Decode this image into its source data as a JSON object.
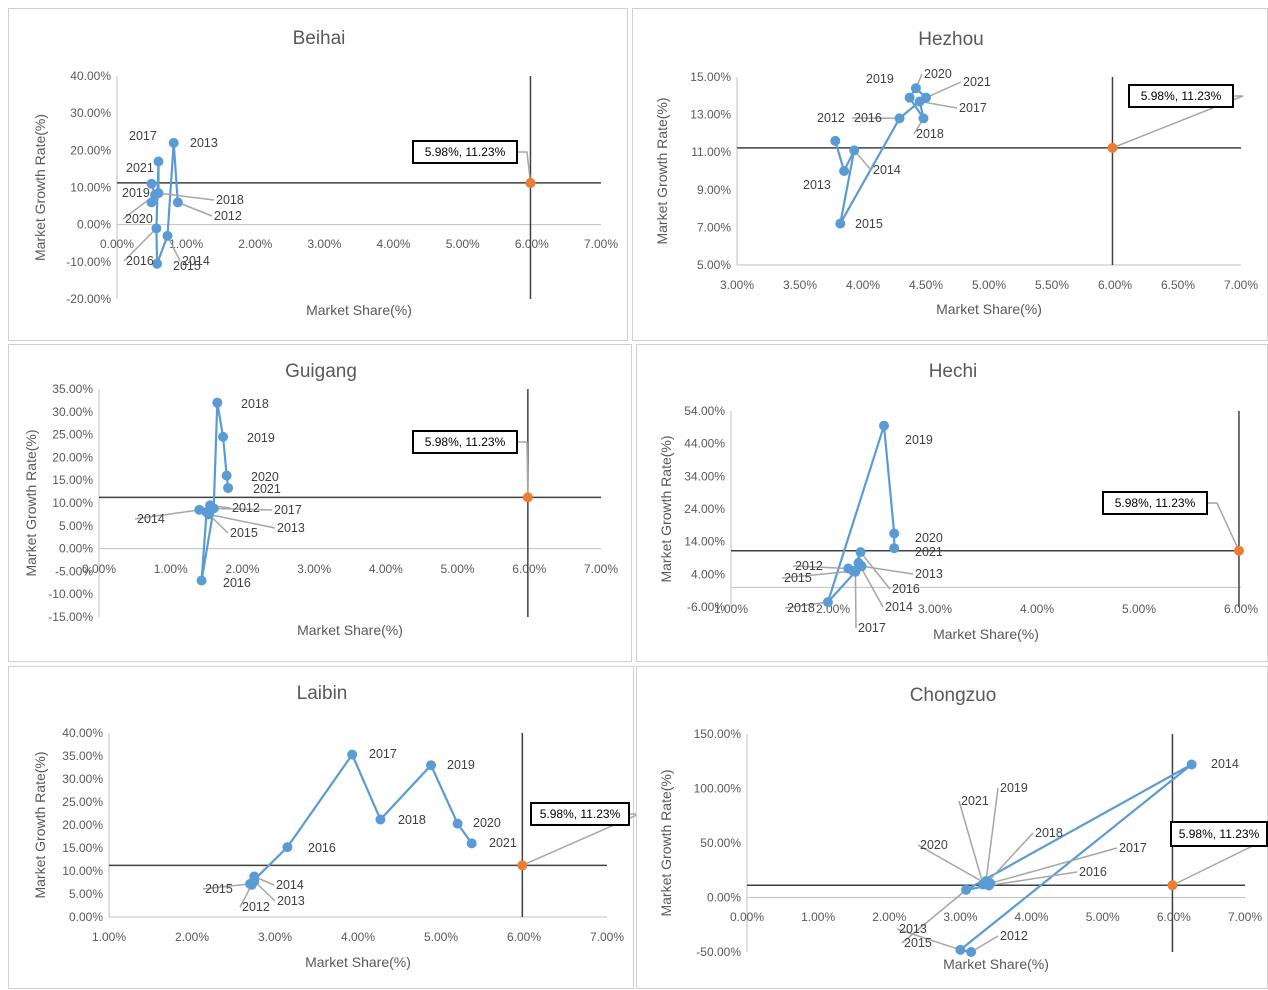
{
  "colors": {
    "series": "#5b9bd5",
    "reference": "#ed7d31",
    "crosshair": "#404040",
    "leader": "#a6a6a6",
    "axis": "#bfbfbf"
  },
  "chart_data": [
    {
      "type": "scatter",
      "title": "Beihai",
      "xlabel": "Market Share(%)",
      "ylabel": "Market Growth Rate(%)",
      "xlim": [
        0,
        7
      ],
      "ylim": [
        -20,
        40
      ],
      "xstep": 1,
      "ystep": 10,
      "xdec": 2,
      "ydec": 2,
      "xticks": [
        "0.00%",
        "1.00%",
        "2.00%",
        "3.00%",
        "4.00%",
        "5.00%",
        "6.00%",
        "7.00%"
      ],
      "yticks": [
        "-20.00%",
        "-10.00%",
        "0.00%",
        "10.00%",
        "20.00%",
        "30.00%",
        "40.00%"
      ],
      "reference": {
        "x": 5.98,
        "y": 11.23,
        "label": "5.98%, 11.23%"
      },
      "series": [
        {
          "points": [
            {
              "year": "2012",
              "x": 0.88,
              "y": 6
            },
            {
              "year": "2013",
              "x": 0.82,
              "y": 22
            },
            {
              "year": "2014",
              "x": 0.73,
              "y": -3
            },
            {
              "year": "2015",
              "x": 0.58,
              "y": -10.5
            },
            {
              "year": "2016",
              "x": 0.57,
              "y": -1
            },
            {
              "year": "2017",
              "x": 0.6,
              "y": 17
            },
            {
              "year": "2018",
              "x": 0.6,
              "y": 8.5
            },
            {
              "year": "2019",
              "x": 0.5,
              "y": 6
            },
            {
              "year": "2020",
              "x": 0.55,
              "y": 8
            },
            {
              "year": "2021",
              "x": 0.5,
              "y": 11
            }
          ]
        }
      ]
    },
    {
      "type": "scatter",
      "title": "Hezhou",
      "xlabel": "Market Share(%)",
      "ylabel": "Market Growth Rate(%)",
      "xlim": [
        3,
        7
      ],
      "ylim": [
        5,
        15
      ],
      "xstep": 0.5,
      "ystep": 2,
      "xdec": 2,
      "ydec": 2,
      "xticks": [
        "3.00%",
        "3.50%",
        "4.00%",
        "4.50%",
        "5.00%",
        "5.50%",
        "6.00%",
        "6.50%",
        "7.00%"
      ],
      "yticks": [
        "5.00%",
        "7.00%",
        "9.00%",
        "11.00%",
        "13.00%",
        "15.00%"
      ],
      "reference": {
        "x": 5.98,
        "y": 11.23,
        "label": "5.98%, 11.23%"
      },
      "series": [
        {
          "points": [
            {
              "year": "2012",
              "x": 3.78,
              "y": 11.6
            },
            {
              "year": "2013",
              "x": 3.85,
              "y": 10.0
            },
            {
              "year": "2014",
              "x": 3.93,
              "y": 11.1
            },
            {
              "year": "2015",
              "x": 3.82,
              "y": 7.2
            },
            {
              "year": "2016",
              "x": 4.29,
              "y": 12.8
            },
            {
              "year": "2017",
              "x": 4.45,
              "y": 13.7
            },
            {
              "year": "2018",
              "x": 4.48,
              "y": 12.8
            },
            {
              "year": "2019",
              "x": 4.37,
              "y": 13.9
            },
            {
              "year": "2020",
              "x": 4.42,
              "y": 14.4
            },
            {
              "year": "2021",
              "x": 4.5,
              "y": 13.9
            }
          ]
        }
      ]
    },
    {
      "type": "scatter",
      "title": "Guigang",
      "xlabel": "Market Share(%)",
      "ylabel": "Market Growth Rate(%)",
      "xlim": [
        0,
        7
      ],
      "ylim": [
        -15,
        35
      ],
      "xstep": 1,
      "ystep": 5,
      "xdec": 2,
      "ydec": 2,
      "xticks": [
        "0.00%",
        "1.00%",
        "2.00%",
        "3.00%",
        "4.00%",
        "5.00%",
        "6.00%",
        "7.00%"
      ],
      "yticks": [
        "-15.00%",
        "-10.00%",
        "-5.00%",
        "0.00%",
        "5.00%",
        "10.00%",
        "15.00%",
        "20.00%",
        "25.00%",
        "30.00%",
        "35.00%"
      ],
      "reference": {
        "x": 5.98,
        "y": 11.23,
        "label": "5.98%, 11.23%"
      },
      "series": [
        {
          "points": [
            {
              "year": "2012",
              "x": 1.55,
              "y": 9.5
            },
            {
              "year": "2013",
              "x": 1.53,
              "y": 7.5
            },
            {
              "year": "2014",
              "x": 1.4,
              "y": 8.5
            },
            {
              "year": "2015",
              "x": 1.5,
              "y": 8.0
            },
            {
              "year": "2016",
              "x": 1.43,
              "y": -7
            },
            {
              "year": "2017",
              "x": 1.6,
              "y": 8.8
            },
            {
              "year": "2018",
              "x": 1.65,
              "y": 32
            },
            {
              "year": "2019",
              "x": 1.73,
              "y": 24.5
            },
            {
              "year": "2020",
              "x": 1.78,
              "y": 16
            },
            {
              "year": "2021",
              "x": 1.8,
              "y": 13.3
            }
          ]
        }
      ]
    },
    {
      "type": "scatter",
      "title": "Hechi",
      "xlabel": "Market Share(%)",
      "ylabel": "Market Growth Rate(%)",
      "xlim": [
        1,
        6
      ],
      "ylim": [
        -6,
        54
      ],
      "xstep": 1,
      "ystep": 10,
      "xdec": 2,
      "ydec": 2,
      "xticks": [
        "1.00%",
        "2.00%",
        "3.00%",
        "4.00%",
        "5.00%",
        "6.00%"
      ],
      "yticks": [
        "-6.00%",
        "4.00%",
        "14.00%",
        "24.00%",
        "34.00%",
        "44.00%",
        "54.00%"
      ],
      "reference": {
        "x": 5.98,
        "y": 11.23,
        "label": "5.98%, 11.23%"
      },
      "series": [
        {
          "points": [
            {
              "year": "2012",
              "x": 2.15,
              "y": 5.8
            },
            {
              "year": "2013",
              "x": 2.28,
              "y": 6.5
            },
            {
              "year": "2014",
              "x": 2.25,
              "y": 7.5
            },
            {
              "year": "2015",
              "x": 2.2,
              "y": 5.0
            },
            {
              "year": "2016",
              "x": 2.27,
              "y": 10.8
            },
            {
              "year": "2017",
              "x": 2.22,
              "y": 4.8
            },
            {
              "year": "2018",
              "x": 1.95,
              "y": -4.5
            },
            {
              "year": "2019",
              "x": 2.5,
              "y": 49.5
            },
            {
              "year": "2020",
              "x": 2.6,
              "y": 16.5
            },
            {
              "year": "2021",
              "x": 2.6,
              "y": 12.0
            }
          ]
        }
      ]
    },
    {
      "type": "scatter",
      "title": "Laibin",
      "xlabel": "Market Share(%)",
      "ylabel": "Market Growth Rate(%)",
      "xlim": [
        1,
        7
      ],
      "ylim": [
        0,
        40
      ],
      "xstep": 1,
      "ystep": 5,
      "xdec": 2,
      "ydec": 2,
      "xticks": [
        "1.00%",
        "2.00%",
        "3.00%",
        "4.00%",
        "5.00%",
        "6.00%",
        "7.00%"
      ],
      "yticks": [
        "0.00%",
        "5.00%",
        "10.00%",
        "15.00%",
        "20.00%",
        "25.00%",
        "30.00%",
        "35.00%",
        "40.00%"
      ],
      "reference": {
        "x": 5.98,
        "y": 11.23,
        "label": "5.98%, 11.23%"
      },
      "series": [
        {
          "points": [
            {
              "year": "2012",
              "x": 2.72,
              "y": 7.0
            },
            {
              "year": "2013",
              "x": 2.75,
              "y": 7.8
            },
            {
              "year": "2014",
              "x": 2.75,
              "y": 8.8
            },
            {
              "year": "2015",
              "x": 2.7,
              "y": 7.2
            },
            {
              "year": "2016",
              "x": 3.15,
              "y": 15.2
            },
            {
              "year": "2017",
              "x": 3.93,
              "y": 35.3
            },
            {
              "year": "2018",
              "x": 4.27,
              "y": 21.2
            },
            {
              "year": "2019",
              "x": 4.88,
              "y": 33.0
            },
            {
              "year": "2020",
              "x": 5.2,
              "y": 20.3
            },
            {
              "year": "2021",
              "x": 5.37,
              "y": 16.0
            }
          ]
        }
      ]
    },
    {
      "type": "scatter",
      "title": "Chongzuo",
      "xlabel": "Market Share(%)",
      "ylabel": "Market Growth Rate(%)",
      "xlim": [
        0,
        7
      ],
      "ylim": [
        -50,
        150
      ],
      "xstep": 1,
      "ystep": 50,
      "xdec": 2,
      "ydec": 2,
      "xticks": [
        "0.00%",
        "1.00%",
        "2.00%",
        "3.00%",
        "4.00%",
        "5.00%",
        "6.00%",
        "7.00%"
      ],
      "yticks": [
        "-50.00%",
        "0.00%",
        "50.00%",
        "100.00%",
        "150.00%"
      ],
      "reference": {
        "x": 5.98,
        "y": 11.23,
        "label": "5.98%, 11.23%"
      },
      "series": [
        {
          "points": [
            {
              "year": "2012",
              "x": 3.15,
              "y": -50
            },
            {
              "year": "2013",
              "x": 3.0,
              "y": -48
            },
            {
              "year": "2014",
              "x": 6.25,
              "y": 122
            },
            {
              "year": "2015",
              "x": 3.08,
              "y": 7
            },
            {
              "year": "2016",
              "x": 3.4,
              "y": 11
            },
            {
              "year": "2017",
              "x": 3.42,
              "y": 13
            },
            {
              "year": "2018",
              "x": 3.38,
              "y": 14
            },
            {
              "year": "2019",
              "x": 3.36,
              "y": 15
            },
            {
              "year": "2020",
              "x": 3.35,
              "y": 13
            },
            {
              "year": "2021",
              "x": 3.32,
              "y": 12
            }
          ]
        }
      ]
    }
  ]
}
